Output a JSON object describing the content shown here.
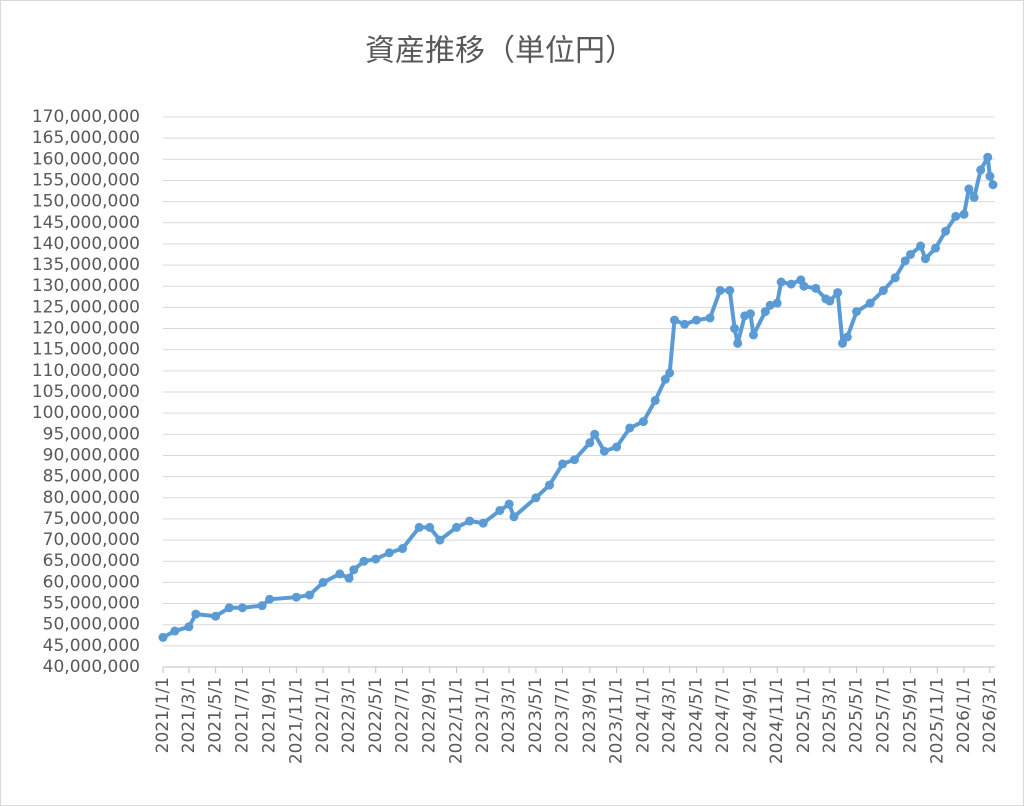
{
  "chart_data": {
    "type": "line",
    "title": "資産推移（単位円）",
    "x": [
      "2021/1/1",
      "2021/1/28",
      "2021/3/1",
      "2021/3/17",
      "2021/5/1",
      "2021/6/1",
      "2021/7/1",
      "2021/8/15",
      "2021/9/1",
      "2021/11/1",
      "2021/12/1",
      "2022/1/1",
      "2022/2/8",
      "2022/3/1",
      "2022/3/12",
      "2022/4/4",
      "2022/5/1",
      "2022/6/1",
      "2022/7/1",
      "2022/8/8",
      "2022/9/1",
      "2022/9/24",
      "2022/11/1",
      "2022/12/1",
      "2023/1/1",
      "2023/2/8",
      "2023/3/1",
      "2023/3/12",
      "2023/5/1",
      "2023/6/1",
      "2023/7/1",
      "2023/7/28",
      "2023/9/1",
      "2023/9/12",
      "2023/10/4",
      "2023/11/1",
      "2023/12/1",
      "2024/1/1",
      "2024/1/28",
      "2024/2/20",
      "2024/3/1",
      "2024/3/12",
      "2024/4/4",
      "2024/5/1",
      "2024/6/1",
      "2024/6/24",
      "2024/7/16",
      "2024/7/27",
      "2024/8/3",
      "2024/8/19",
      "2024/9/1",
      "2024/9/8",
      "2024/10/5",
      "2024/10/16",
      "2024/11/1",
      "2024/11/10",
      "2024/12/3",
      "2024/12/25",
      "2025/1/1",
      "2025/1/28",
      "2025/2/20",
      "2025/3/1",
      "2025/3/19",
      "2025/3/30",
      "2025/4/10",
      "2025/5/1",
      "2025/6/1",
      "2025/7/1",
      "2025/7/28",
      "2025/8/20",
      "2025/9/1",
      "2025/9/24",
      "2025/10/5",
      "2025/10/28",
      "2025/11/20",
      "2025/12/13",
      "2026/1/1",
      "2026/1/12",
      "2026/1/24",
      "2026/2/8",
      "2026/2/24",
      "2026/3/1",
      "2026/3/8"
    ],
    "values": [
      47000000,
      48500000,
      49500000,
      52500000,
      52000000,
      54000000,
      54000000,
      54500000,
      56000000,
      56500000,
      57000000,
      60000000,
      62000000,
      61000000,
      63000000,
      65000000,
      65500000,
      67000000,
      68000000,
      73000000,
      73000000,
      70000000,
      73000000,
      74500000,
      74000000,
      77000000,
      78500000,
      75500000,
      80000000,
      83000000,
      88000000,
      89000000,
      93000000,
      95000000,
      91000000,
      92000000,
      96500000,
      98000000,
      103000000,
      108000000,
      109500000,
      122000000,
      121000000,
      122000000,
      122500000,
      129000000,
      129000000,
      120000000,
      116500000,
      123000000,
      123500000,
      118500000,
      124000000,
      125500000,
      126000000,
      131000000,
      130500000,
      131500000,
      130000000,
      129500000,
      127000000,
      126500000,
      128500000,
      116500000,
      118000000,
      124000000,
      126000000,
      129000000,
      132000000,
      136000000,
      137500000,
      139500000,
      136500000,
      139000000,
      143000000,
      146500000,
      147000000,
      153000000,
      151000000,
      157500000,
      160500000,
      156000000,
      154000000
    ],
    "color": "#5b9bd5",
    "xlim": [
      "2021/1/1",
      "2026/3/8"
    ],
    "xticks": [
      "2021/1/1",
      "2021/3/1",
      "2021/5/1",
      "2021/7/1",
      "2021/9/1",
      "2021/11/1",
      "2022/1/1",
      "2022/3/1",
      "2022/5/1",
      "2022/7/1",
      "2022/9/1",
      "2022/11/1",
      "2023/1/1",
      "2023/3/1",
      "2023/5/1",
      "2023/7/1",
      "2023/9/1",
      "2023/11/1",
      "2024/1/1",
      "2024/3/1",
      "2024/5/1",
      "2024/7/1",
      "2024/9/1",
      "2024/11/1",
      "2025/1/1",
      "2025/3/1",
      "2025/5/1",
      "2025/7/1",
      "2025/9/1",
      "2025/11/1",
      "2026/1/1",
      "2026/3/1"
    ],
    "ylim": [
      40000000,
      170000000
    ],
    "yticks": [
      {
        "value": 40000000,
        "label": "40,000,000"
      },
      {
        "value": 45000000,
        "label": "45,000,000"
      },
      {
        "value": 50000000,
        "label": "50,000,000"
      },
      {
        "value": 55000000,
        "label": "55,000,000"
      },
      {
        "value": 60000000,
        "label": "60,000,000"
      },
      {
        "value": 65000000,
        "label": "65,000,000"
      },
      {
        "value": 70000000,
        "label": "70,000,000"
      },
      {
        "value": 75000000,
        "label": "75,000,000"
      },
      {
        "value": 80000000,
        "label": "80,000,000"
      },
      {
        "value": 85000000,
        "label": "85,000,000"
      },
      {
        "value": 90000000,
        "label": "90,000,000"
      },
      {
        "value": 95000000,
        "label": "95,000,000"
      },
      {
        "value": 100000000,
        "label": "100,000,000"
      },
      {
        "value": 105000000,
        "label": "105,000,000"
      },
      {
        "value": 110000000,
        "label": "110,000,000"
      },
      {
        "value": 115000000,
        "label": "115,000,000"
      },
      {
        "value": 120000000,
        "label": "120,000,000"
      },
      {
        "value": 125000000,
        "label": "125,000,000"
      },
      {
        "value": 130000000,
        "label": "130,000,000"
      },
      {
        "value": 135000000,
        "label": "135,000,000"
      },
      {
        "value": 140000000,
        "label": "140,000,000"
      },
      {
        "value": 145000000,
        "label": "145,000,000"
      },
      {
        "value": 150000000,
        "label": "150,000,000"
      },
      {
        "value": 155000000,
        "label": "155,000,000"
      },
      {
        "value": 160000000,
        "label": "160,000,000"
      },
      {
        "value": 165000000,
        "label": "165,000,000"
      },
      {
        "value": 170000000,
        "label": "170,000,000"
      }
    ],
    "grid": true
  }
}
